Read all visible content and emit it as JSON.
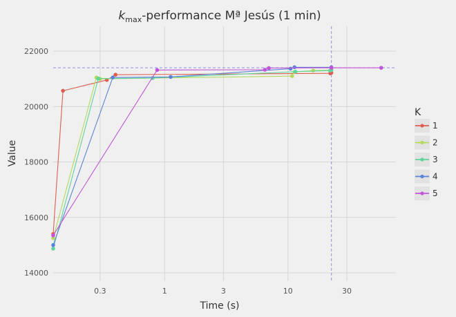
{
  "chart_data": {
    "type": "line",
    "title": "k_max-performance Mª Jesús (1 min)",
    "title_parts": {
      "k": "k",
      "sub": "max",
      "rest": "-performance Mª Jesús (1 min)"
    },
    "xlabel": "Time (s)",
    "ylabel": "Value",
    "x_scale": "log",
    "xlim": [
      0.125,
      75
    ],
    "ylim": [
      13700,
      22900
    ],
    "x_ticks": [
      0.3,
      1,
      3,
      10,
      30
    ],
    "x_tick_labels": [
      "0.3",
      "1",
      "3",
      "10",
      "30"
    ],
    "y_ticks": [
      14000,
      16000,
      18000,
      20000,
      22000
    ],
    "y_tick_labels": [
      "14000",
      "16000",
      "18000",
      "20000",
      "22000"
    ],
    "grid": true,
    "legend": {
      "title": "K",
      "position": "right"
    },
    "reference_lines": {
      "horizontal": 21400,
      "vertical": 22.5,
      "color": "#8d8de8"
    },
    "series": [
      {
        "name": "1",
        "color": "#dd5d50",
        "points": [
          [
            0.125,
            15400
          ],
          [
            0.15,
            20570
          ],
          [
            0.34,
            20960
          ],
          [
            0.4,
            21150
          ],
          [
            22,
            21200
          ],
          [
            22.5,
            21220
          ]
        ]
      },
      {
        "name": "2",
        "color": "#b4d95c",
        "points": [
          [
            0.125,
            15250
          ],
          [
            0.28,
            21050
          ],
          [
            0.3,
            21000
          ],
          [
            10.8,
            21100
          ],
          [
            11.3,
            21250
          ],
          [
            16,
            21300
          ],
          [
            22.5,
            21320
          ]
        ]
      },
      {
        "name": "3",
        "color": "#5cd49b",
        "points": [
          [
            0.125,
            14870
          ],
          [
            0.29,
            21010
          ],
          [
            0.8,
            21030
          ],
          [
            11.5,
            21260
          ],
          [
            22,
            21300
          ],
          [
            22.5,
            21330
          ]
        ]
      },
      {
        "name": "4",
        "color": "#5c82d8",
        "points": [
          [
            0.125,
            15000
          ],
          [
            0.38,
            21050
          ],
          [
            1.12,
            21070
          ],
          [
            10.5,
            21370
          ],
          [
            11.3,
            21420
          ],
          [
            22.5,
            21420
          ]
        ]
      },
      {
        "name": "5",
        "color": "#c254d8",
        "points": [
          [
            0.125,
            15350
          ],
          [
            0.87,
            21320
          ],
          [
            6.5,
            21330
          ],
          [
            7,
            21390
          ],
          [
            22.5,
            21400
          ],
          [
            57,
            21400
          ]
        ]
      }
    ]
  }
}
